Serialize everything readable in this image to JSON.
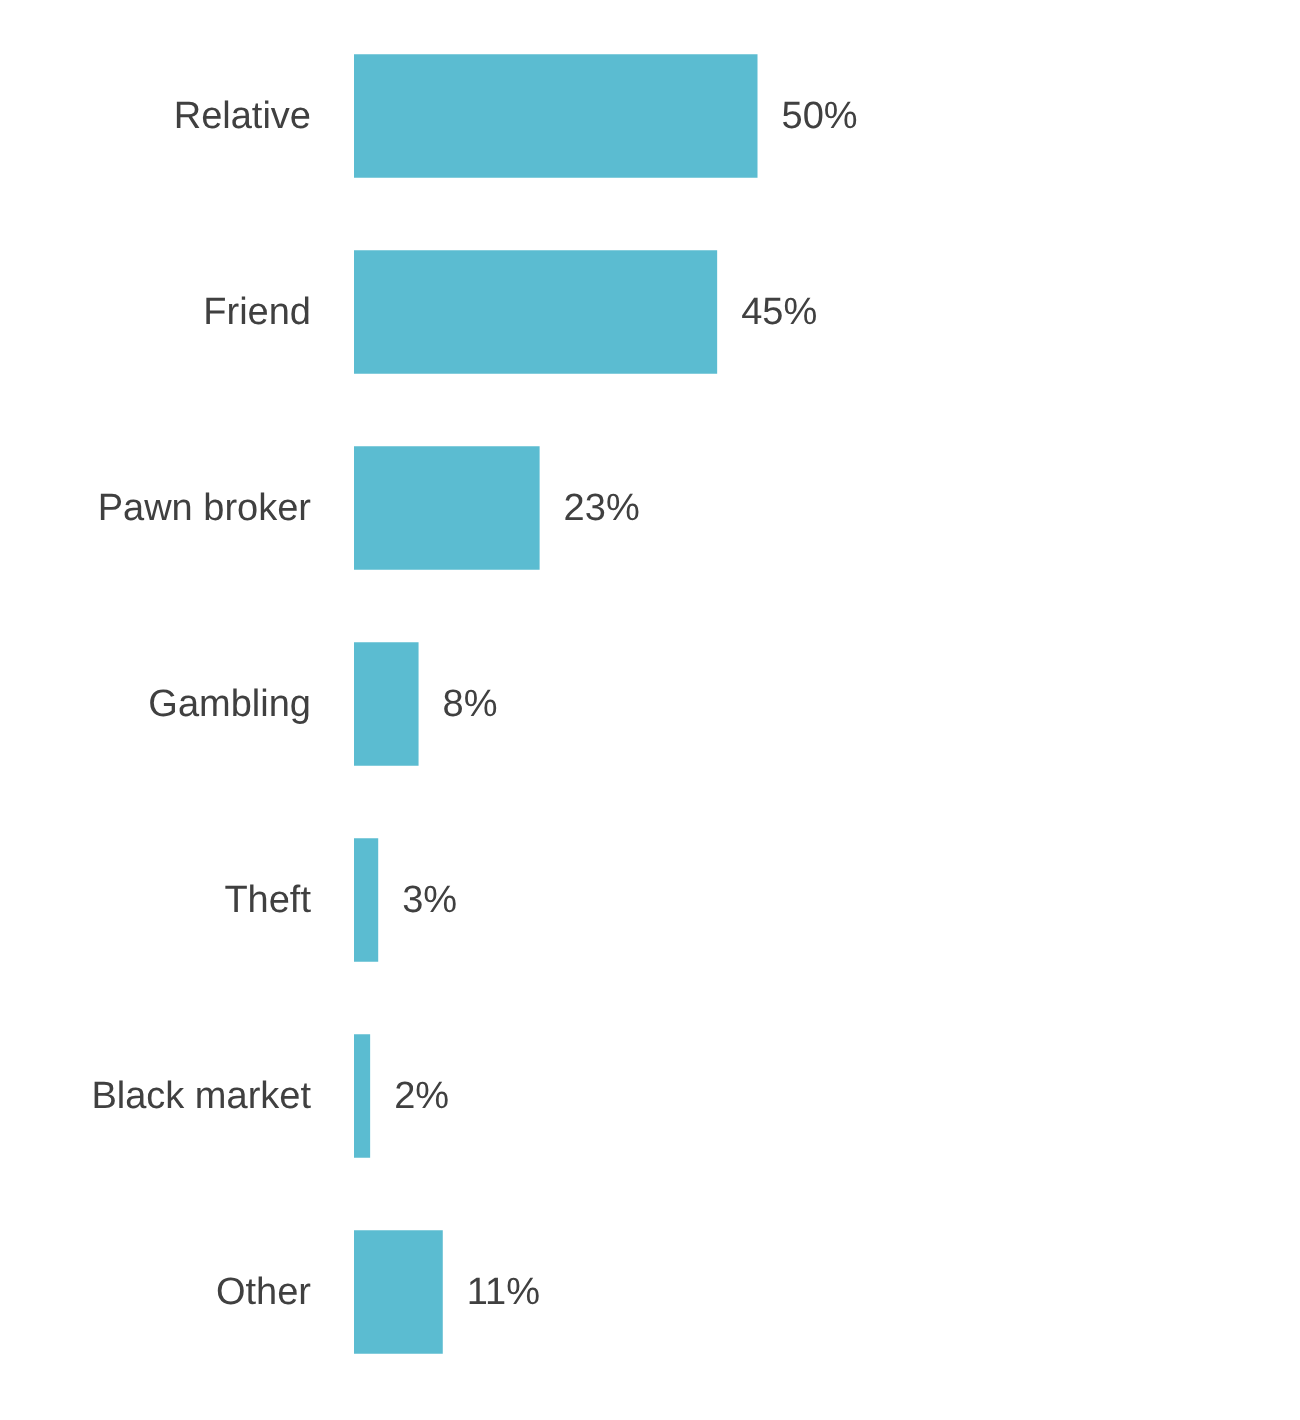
{
  "chart_data": {
    "type": "bar",
    "orientation": "horizontal",
    "categories": [
      "Relative",
      "Friend",
      "Pawn broker",
      "Gambling",
      "Theft",
      "Black market",
      "Other"
    ],
    "values": [
      50,
      45,
      23,
      8,
      3,
      2,
      11
    ],
    "value_labels": [
      "50%",
      "45%",
      "23%",
      "8%",
      "3%",
      "2%",
      "11%"
    ],
    "color": "#5bbcd1"
  }
}
